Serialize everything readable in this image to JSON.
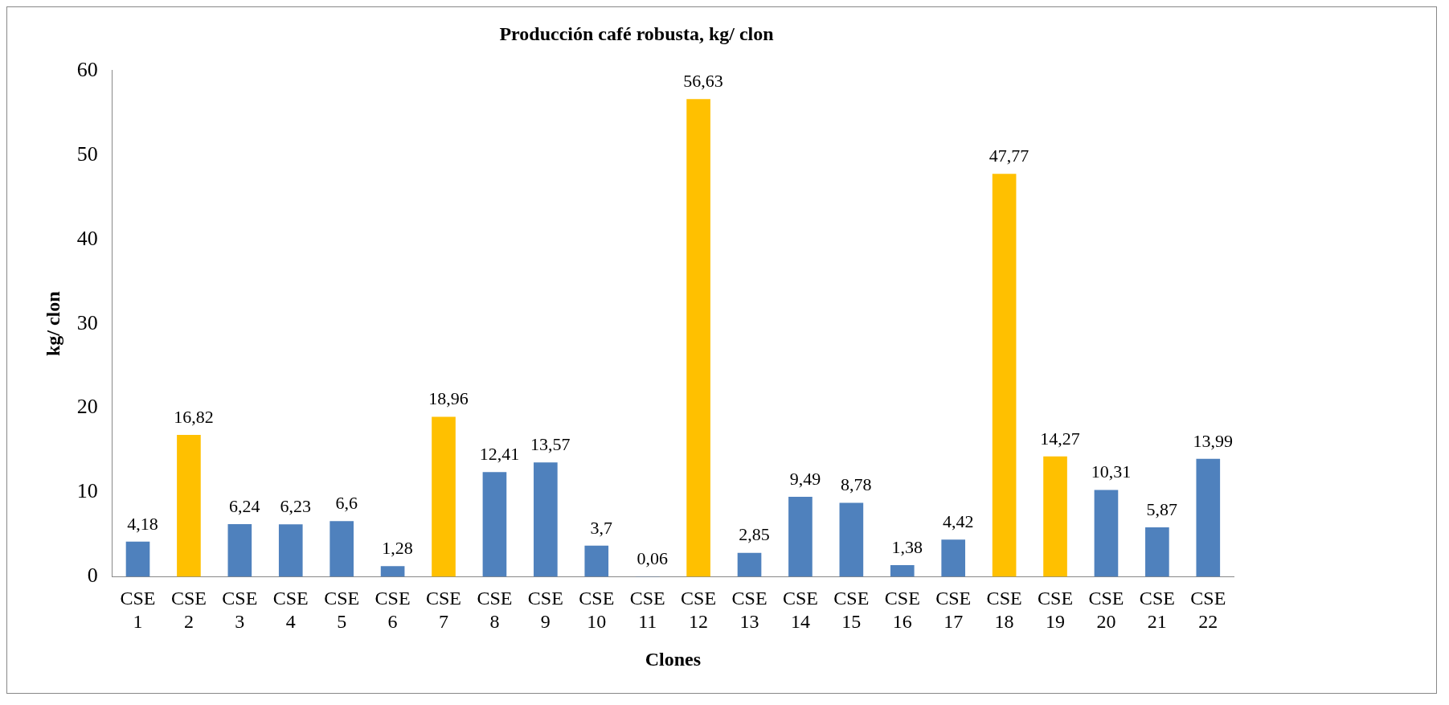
{
  "chart_data": {
    "type": "bar",
    "title": "Producción café robusta, kg/ clon",
    "xlabel": "Clones",
    "ylabel": "kg/ clon",
    "categories": [
      "CSE 1",
      "CSE 2",
      "CSE 3",
      "CSE 4",
      "CSE 5",
      "CSE 6",
      "CSE 7",
      "CSE 8",
      "CSE 9",
      "CSE 10",
      "CSE 11",
      "CSE 12",
      "CSE 13",
      "CSE 14",
      "CSE 15",
      "CSE 16",
      "CSE 17",
      "CSE 18",
      "CSE 19",
      "CSE 20",
      "CSE 21",
      "CSE 22"
    ],
    "values": [
      4.18,
      16.82,
      6.24,
      6.23,
      6.6,
      1.28,
      18.96,
      12.41,
      13.57,
      3.7,
      0.06,
      56.63,
      2.85,
      9.49,
      8.78,
      1.38,
      4.42,
      47.77,
      14.27,
      10.31,
      5.87,
      13.99
    ],
    "value_labels": [
      "4,18",
      "16,82",
      "6,24",
      "6,23",
      "6,6",
      "1,28",
      "18,96",
      "12,41",
      "13,57",
      "3,7",
      "0,06",
      "56,63",
      "2,85",
      "9,49",
      "8,78",
      "1,38",
      "4,42",
      "47,77",
      "14,27",
      "10,31",
      "5,87",
      "13,99"
    ],
    "colors": [
      "#4f81bd",
      "#ffc000",
      "#4f81bd",
      "#4f81bd",
      "#4f81bd",
      "#4f81bd",
      "#ffc000",
      "#4f81bd",
      "#4f81bd",
      "#4f81bd",
      "#4f81bd",
      "#ffc000",
      "#4f81bd",
      "#4f81bd",
      "#4f81bd",
      "#4f81bd",
      "#4f81bd",
      "#ffc000",
      "#ffc000",
      "#4f81bd",
      "#4f81bd",
      "#4f81bd"
    ],
    "ylim": [
      0,
      60
    ],
    "yticks": [
      0,
      10,
      20,
      30,
      40,
      50,
      60
    ],
    "grid": false,
    "legend": false
  }
}
